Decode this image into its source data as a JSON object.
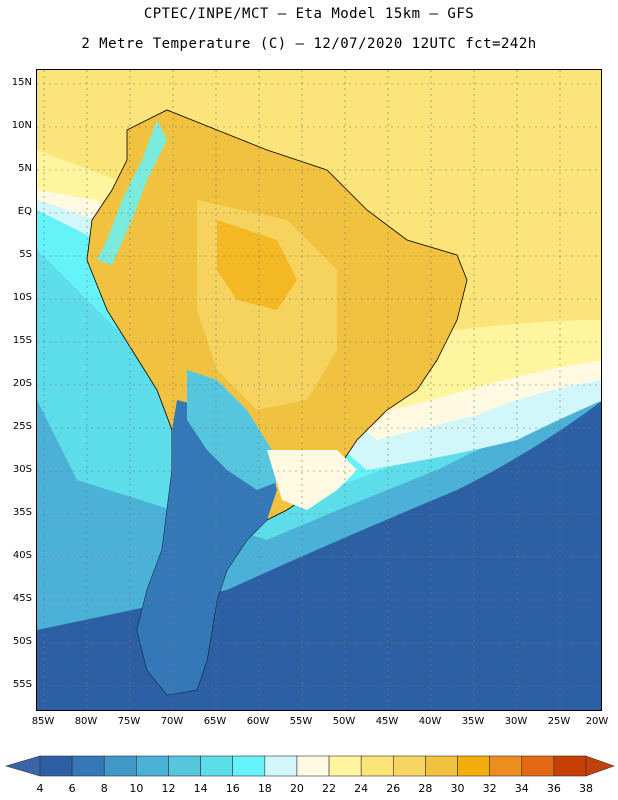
{
  "header": {
    "line1": "CPTEC/INPE/MCT –  Eta Model 15km – GFS",
    "line2": "2 Metre Temperature (C) – 12/07/2020 12UTC fct=242h"
  },
  "axes": {
    "lat_labels": [
      "15N",
      "10N",
      "5N",
      "EQ",
      "5S",
      "10S",
      "15S",
      "20S",
      "25S",
      "30S",
      "35S",
      "40S",
      "45S",
      "50S",
      "55S"
    ],
    "lon_labels": [
      "85W",
      "80W",
      "75W",
      "70W",
      "65W",
      "60W",
      "55W",
      "50W",
      "45W",
      "40W",
      "35W",
      "30W",
      "25W",
      "20W"
    ]
  },
  "legend": {
    "colors": [
      "#2d5fa5",
      "#3478b8",
      "#3f98c8",
      "#4cb1d6",
      "#55c6dd",
      "#5ddcea",
      "#66f2f9",
      "#d2f7fb",
      "#fff9e2",
      "#fff59e",
      "#fbe47a",
      "#f6d562",
      "#f1c23f",
      "#f3ad0d",
      "#ec8d1f",
      "#e36a12",
      "#c83f05"
    ],
    "low_color": "#3a66a8",
    "high_color": "#c2410c",
    "ticks": [
      "4",
      "6",
      "8",
      "10",
      "12",
      "14",
      "16",
      "18",
      "20",
      "22",
      "24",
      "26",
      "28",
      "30",
      "32",
      "34",
      "36",
      "38"
    ]
  }
}
